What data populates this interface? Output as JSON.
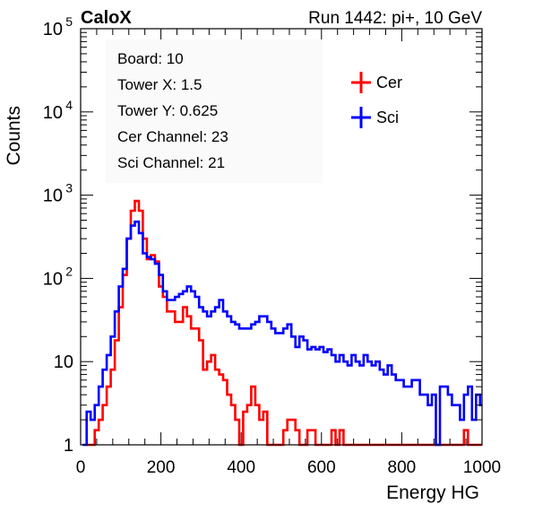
{
  "header": {
    "brand": "CaloX",
    "run_label": "Run 1442: pi+, 10 GeV"
  },
  "info_box": [
    "Board: 10",
    "Tower X: 1.5",
    "Tower Y: 0.625",
    "Cer Channel: 23",
    "Sci Channel: 21"
  ],
  "legend": [
    {
      "name": "Cer",
      "color": "#ff0000"
    },
    {
      "name": "Sci",
      "color": "#0000ff"
    }
  ],
  "chart_data": {
    "type": "line",
    "style": "step histogram",
    "xlabel": "Energy HG",
    "ylabel": "Counts",
    "xlim": [
      0,
      1000
    ],
    "ylim": [
      1,
      100000
    ],
    "y_scale": "log",
    "x_ticks": [
      0,
      200,
      400,
      600,
      800,
      1000
    ],
    "x_tick_labels": [
      "0",
      "200",
      "400",
      "600",
      "800",
      "1000"
    ],
    "y_ticks": [
      1,
      10,
      100,
      1000,
      10000,
      100000
    ],
    "y_tick_labels": [
      {
        "base": "1",
        "exp": ""
      },
      {
        "base": "10",
        "exp": ""
      },
      {
        "base": "10",
        "exp": "2"
      },
      {
        "base": "10",
        "exp": "3"
      },
      {
        "base": "10",
        "exp": "4"
      },
      {
        "base": "10",
        "exp": "5"
      }
    ],
    "grid": false,
    "legend_position": "top-right",
    "series": [
      {
        "name": "Cer",
        "color": "#ff0000",
        "points": [
          [
            20,
            1
          ],
          [
            30,
            1
          ],
          [
            40,
            1.5
          ],
          [
            50,
            2
          ],
          [
            60,
            3
          ],
          [
            70,
            5
          ],
          [
            80,
            8
          ],
          [
            90,
            18
          ],
          [
            100,
            45
          ],
          [
            110,
            110
          ],
          [
            120,
            300
          ],
          [
            130,
            650
          ],
          [
            140,
            850
          ],
          [
            150,
            650
          ],
          [
            160,
            300
          ],
          [
            170,
            170
          ],
          [
            180,
            190
          ],
          [
            190,
            160
          ],
          [
            200,
            80
          ],
          [
            210,
            60
          ],
          [
            220,
            40
          ],
          [
            230,
            40
          ],
          [
            240,
            30
          ],
          [
            250,
            30
          ],
          [
            260,
            45
          ],
          [
            270,
            35
          ],
          [
            280,
            25
          ],
          [
            290,
            25
          ],
          [
            300,
            18
          ],
          [
            310,
            8
          ],
          [
            320,
            10
          ],
          [
            330,
            12
          ],
          [
            340,
            8
          ],
          [
            350,
            7
          ],
          [
            360,
            6
          ],
          [
            370,
            4
          ],
          [
            380,
            3
          ],
          [
            390,
            2
          ],
          [
            400,
            1
          ],
          [
            410,
            2.5
          ],
          [
            420,
            3
          ],
          [
            430,
            5
          ],
          [
            440,
            3
          ],
          [
            450,
            2
          ],
          [
            460,
            2.5
          ],
          [
            470,
            1
          ],
          [
            480,
            1
          ],
          [
            490,
            1
          ],
          [
            500,
            1
          ],
          [
            510,
            1.5
          ],
          [
            520,
            2
          ],
          [
            530,
            2
          ],
          [
            540,
            1.5
          ],
          [
            550,
            1
          ],
          [
            560,
            1
          ],
          [
            570,
            1.5
          ],
          [
            580,
            1.5
          ],
          [
            590,
            1
          ],
          [
            600,
            1
          ],
          [
            610,
            1
          ],
          [
            620,
            1
          ],
          [
            630,
            1.5
          ],
          [
            640,
            1
          ],
          [
            650,
            1.5
          ],
          [
            660,
            1
          ],
          [
            670,
            1
          ],
          [
            680,
            1
          ],
          [
            690,
            1
          ],
          [
            700,
            1
          ],
          [
            710,
            1
          ],
          [
            720,
            1
          ],
          [
            730,
            1
          ],
          [
            740,
            1
          ],
          [
            750,
            1
          ],
          [
            760,
            1
          ],
          [
            770,
            1
          ],
          [
            780,
            1
          ],
          [
            790,
            1
          ],
          [
            800,
            1
          ],
          [
            810,
            1
          ],
          [
            820,
            1
          ],
          [
            830,
            1
          ],
          [
            840,
            1
          ],
          [
            850,
            1
          ],
          [
            860,
            1
          ],
          [
            870,
            1
          ],
          [
            880,
            1
          ],
          [
            890,
            1
          ],
          [
            900,
            1
          ],
          [
            910,
            1
          ],
          [
            920,
            1
          ],
          [
            930,
            1
          ],
          [
            940,
            1
          ],
          [
            950,
            1
          ],
          [
            960,
            1.5
          ],
          [
            970,
            1
          ],
          [
            980,
            1
          ],
          [
            990,
            1
          ],
          [
            1000,
            1
          ]
        ]
      },
      {
        "name": "Sci",
        "color": "#0000ff",
        "points": [
          [
            10,
            1
          ],
          [
            20,
            2.5
          ],
          [
            30,
            2
          ],
          [
            40,
            3
          ],
          [
            50,
            5
          ],
          [
            60,
            8
          ],
          [
            70,
            12
          ],
          [
            80,
            20
          ],
          [
            90,
            40
          ],
          [
            100,
            80
          ],
          [
            110,
            130
          ],
          [
            120,
            300
          ],
          [
            130,
            430
          ],
          [
            140,
            480
          ],
          [
            150,
            350
          ],
          [
            160,
            200
          ],
          [
            170,
            180
          ],
          [
            180,
            170
          ],
          [
            190,
            150
          ],
          [
            200,
            110
          ],
          [
            210,
            70
          ],
          [
            220,
            55
          ],
          [
            230,
            55
          ],
          [
            240,
            60
          ],
          [
            250,
            65
          ],
          [
            260,
            70
          ],
          [
            270,
            80
          ],
          [
            280,
            70
          ],
          [
            290,
            60
          ],
          [
            300,
            45
          ],
          [
            310,
            40
          ],
          [
            320,
            35
          ],
          [
            330,
            40
          ],
          [
            340,
            45
          ],
          [
            350,
            55
          ],
          [
            360,
            40
          ],
          [
            370,
            35
          ],
          [
            380,
            30
          ],
          [
            390,
            28
          ],
          [
            400,
            25
          ],
          [
            410,
            25
          ],
          [
            420,
            25
          ],
          [
            430,
            28
          ],
          [
            440,
            30
          ],
          [
            450,
            35
          ],
          [
            460,
            35
          ],
          [
            470,
            30
          ],
          [
            480,
            25
          ],
          [
            490,
            22
          ],
          [
            500,
            22
          ],
          [
            510,
            25
          ],
          [
            520,
            28
          ],
          [
            530,
            20
          ],
          [
            540,
            15
          ],
          [
            550,
            20
          ],
          [
            560,
            18
          ],
          [
            570,
            14
          ],
          [
            580,
            15
          ],
          [
            590,
            14
          ],
          [
            600,
            15
          ],
          [
            610,
            13
          ],
          [
            620,
            14
          ],
          [
            630,
            12
          ],
          [
            640,
            10
          ],
          [
            650,
            12
          ],
          [
            660,
            10
          ],
          [
            670,
            9
          ],
          [
            680,
            12
          ],
          [
            690,
            10
          ],
          [
            700,
            9
          ],
          [
            710,
            12
          ],
          [
            720,
            10
          ],
          [
            730,
            9
          ],
          [
            740,
            10
          ],
          [
            750,
            8
          ],
          [
            760,
            7
          ],
          [
            770,
            9
          ],
          [
            780,
            7
          ],
          [
            790,
            6
          ],
          [
            800,
            6
          ],
          [
            810,
            5
          ],
          [
            820,
            5
          ],
          [
            830,
            6
          ],
          [
            840,
            6
          ],
          [
            850,
            4
          ],
          [
            860,
            4
          ],
          [
            870,
            3
          ],
          [
            880,
            4
          ],
          [
            890,
            1
          ],
          [
            900,
            5
          ],
          [
            910,
            5
          ],
          [
            920,
            4
          ],
          [
            930,
            3
          ],
          [
            940,
            3
          ],
          [
            950,
            2
          ],
          [
            960,
            4
          ],
          [
            970,
            5
          ],
          [
            980,
            2
          ],
          [
            990,
            4
          ],
          [
            1000,
            3
          ]
        ]
      }
    ]
  }
}
